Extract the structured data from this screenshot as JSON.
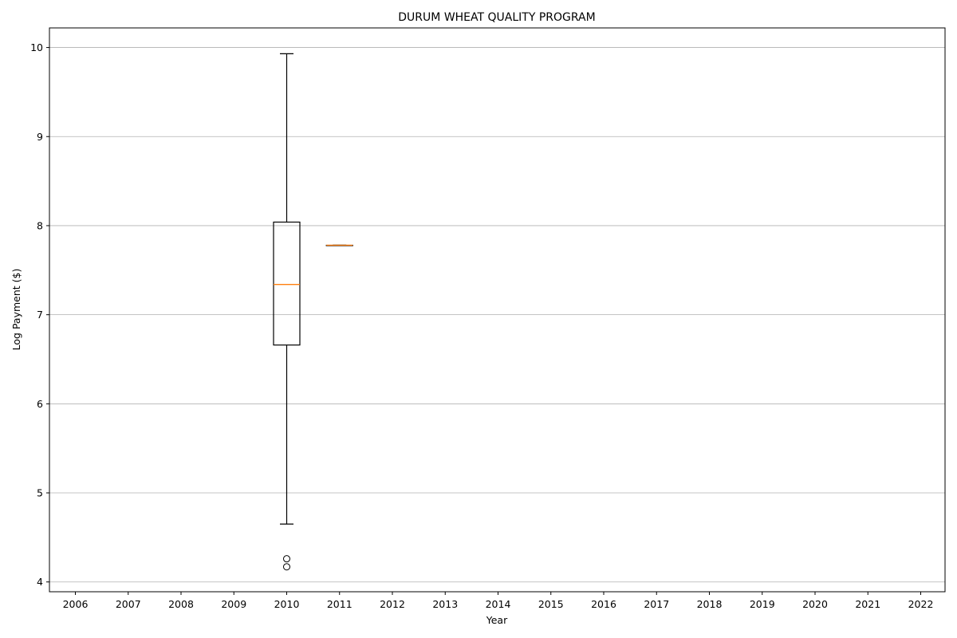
{
  "chart_data": {
    "type": "boxplot",
    "title": "DURUM WHEAT QUALITY PROGRAM",
    "xlabel": "Year",
    "ylabel": "Log Payment ($)",
    "categories": [
      "2006",
      "2007",
      "2008",
      "2009",
      "2010",
      "2011",
      "2012",
      "2013",
      "2014",
      "2015",
      "2016",
      "2017",
      "2018",
      "2019",
      "2020",
      "2021",
      "2022"
    ],
    "ylim": [
      3.89,
      10.22
    ],
    "yticks": [
      4,
      5,
      6,
      7,
      8,
      9,
      10
    ],
    "grid": "y-major",
    "boxes": [
      {
        "category": "2010",
        "whisker_low": 4.65,
        "q1": 6.66,
        "median": 7.34,
        "q3": 8.04,
        "whisker_high": 9.93,
        "outliers": [
          4.26,
          4.17
        ]
      },
      {
        "category": "2011",
        "whisker_low": 7.78,
        "q1": 7.78,
        "median": 7.78,
        "q3": 7.78,
        "whisker_high": 7.78,
        "outliers": []
      }
    ],
    "colors": {
      "box": "#000000",
      "median": "#ff7f0e",
      "grid": "#b0b0b0"
    }
  }
}
